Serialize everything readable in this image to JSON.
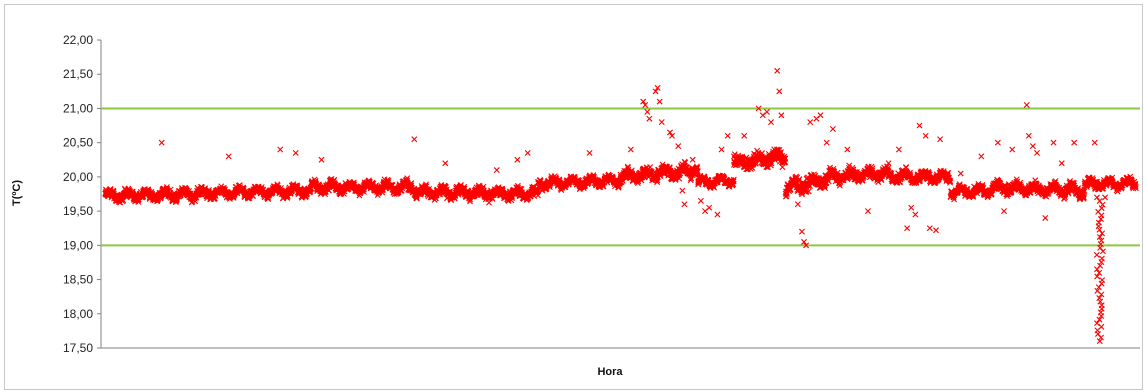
{
  "chart_data": {
    "type": "scatter",
    "title": "",
    "xlabel": "Hora",
    "ylabel": "T(ºC)",
    "ylim": [
      17.5,
      22.0
    ],
    "yticks": [
      "17,50",
      "18,00",
      "18,50",
      "19,00",
      "19,50",
      "20,00",
      "20,50",
      "21,00",
      "21,50",
      "22,00"
    ],
    "grid": false,
    "legend": "none",
    "x_tick_labels": false,
    "reference_lines": [
      {
        "y": 21.0,
        "color": "#8dc63f"
      },
      {
        "y": 19.0,
        "color": "#8dc63f"
      }
    ],
    "marker": "x",
    "marker_color": "#ff0000",
    "x_range": [
      0,
      1000
    ],
    "segments": [
      {
        "x": [
          0,
          200
        ],
        "base": [
          19.72,
          19.8
        ],
        "jitter": 0.07
      },
      {
        "x": [
          200,
          300
        ],
        "base": [
          19.85,
          19.85
        ],
        "jitter": 0.08
      },
      {
        "x": [
          300,
          420
        ],
        "base": [
          19.78,
          19.75
        ],
        "jitter": 0.08
      },
      {
        "x": [
          420,
          500
        ],
        "base": [
          19.9,
          19.95
        ],
        "jitter": 0.06
      },
      {
        "x": [
          500,
          575
        ],
        "base": [
          20.0,
          20.1
        ],
        "jitter": 0.1
      },
      {
        "x": [
          575,
          610
        ],
        "base": [
          19.92,
          19.95
        ],
        "jitter": 0.05
      },
      {
        "x": [
          610,
          660
        ],
        "base": [
          20.2,
          20.3
        ],
        "jitter": 0.12
      },
      {
        "x": [
          660,
          700
        ],
        "base": [
          19.85,
          19.95
        ],
        "jitter": 0.12
      },
      {
        "x": [
          700,
          760
        ],
        "base": [
          20.0,
          20.05
        ],
        "jitter": 0.09
      },
      {
        "x": [
          760,
          820
        ],
        "base": [
          20.0,
          20.0
        ],
        "jitter": 0.08
      },
      {
        "x": [
          820,
          860
        ],
        "base": [
          19.78,
          19.8
        ],
        "jitter": 0.07
      },
      {
        "x": [
          860,
          950
        ],
        "base": [
          19.85,
          19.8
        ],
        "jitter": 0.09
      },
      {
        "x": [
          950,
          1000
        ],
        "base": [
          19.9,
          19.9
        ],
        "jitter": 0.07
      }
    ],
    "outliers": [
      {
        "x": 55,
        "y": 20.5
      },
      {
        "x": 120,
        "y": 20.3
      },
      {
        "x": 170,
        "y": 20.4
      },
      {
        "x": 185,
        "y": 20.35
      },
      {
        "x": 210,
        "y": 20.25
      },
      {
        "x": 300,
        "y": 20.55
      },
      {
        "x": 330,
        "y": 20.2
      },
      {
        "x": 380,
        "y": 20.1
      },
      {
        "x": 400,
        "y": 20.25
      },
      {
        "x": 410,
        "y": 20.35
      },
      {
        "x": 470,
        "y": 20.35
      },
      {
        "x": 510,
        "y": 20.4
      },
      {
        "x": 522,
        "y": 21.1
      },
      {
        "x": 524,
        "y": 21.05
      },
      {
        "x": 526,
        "y": 20.95
      },
      {
        "x": 528,
        "y": 20.85
      },
      {
        "x": 534,
        "y": 21.25
      },
      {
        "x": 536,
        "y": 21.3
      },
      {
        "x": 538,
        "y": 21.1
      },
      {
        "x": 540,
        "y": 20.8
      },
      {
        "x": 548,
        "y": 20.65
      },
      {
        "x": 550,
        "y": 20.6
      },
      {
        "x": 556,
        "y": 20.45
      },
      {
        "x": 560,
        "y": 19.8
      },
      {
        "x": 562,
        "y": 19.6
      },
      {
        "x": 570,
        "y": 20.25
      },
      {
        "x": 578,
        "y": 19.65
      },
      {
        "x": 582,
        "y": 19.5
      },
      {
        "x": 586,
        "y": 19.55
      },
      {
        "x": 594,
        "y": 19.45
      },
      {
        "x": 598,
        "y": 20.4
      },
      {
        "x": 604,
        "y": 20.6
      },
      {
        "x": 610,
        "y": 20.3
      },
      {
        "x": 620,
        "y": 20.6
      },
      {
        "x": 634,
        "y": 21.0
      },
      {
        "x": 638,
        "y": 20.9
      },
      {
        "x": 642,
        "y": 20.95
      },
      {
        "x": 646,
        "y": 20.8
      },
      {
        "x": 652,
        "y": 21.55
      },
      {
        "x": 654,
        "y": 21.25
      },
      {
        "x": 656,
        "y": 20.9
      },
      {
        "x": 672,
        "y": 19.6
      },
      {
        "x": 676,
        "y": 19.2
      },
      {
        "x": 678,
        "y": 19.05
      },
      {
        "x": 680,
        "y": 19.0
      },
      {
        "x": 684,
        "y": 20.8
      },
      {
        "x": 690,
        "y": 20.85
      },
      {
        "x": 694,
        "y": 20.9
      },
      {
        "x": 700,
        "y": 20.5
      },
      {
        "x": 706,
        "y": 20.7
      },
      {
        "x": 720,
        "y": 20.4
      },
      {
        "x": 740,
        "y": 19.5
      },
      {
        "x": 760,
        "y": 20.2
      },
      {
        "x": 770,
        "y": 20.4
      },
      {
        "x": 778,
        "y": 19.25
      },
      {
        "x": 782,
        "y": 19.55
      },
      {
        "x": 786,
        "y": 19.45
      },
      {
        "x": 790,
        "y": 20.75
      },
      {
        "x": 796,
        "y": 20.6
      },
      {
        "x": 800,
        "y": 19.25
      },
      {
        "x": 806,
        "y": 19.22
      },
      {
        "x": 810,
        "y": 20.55
      },
      {
        "x": 830,
        "y": 20.05
      },
      {
        "x": 850,
        "y": 20.3
      },
      {
        "x": 866,
        "y": 20.5
      },
      {
        "x": 872,
        "y": 19.5
      },
      {
        "x": 880,
        "y": 20.4
      },
      {
        "x": 894,
        "y": 21.05
      },
      {
        "x": 896,
        "y": 20.6
      },
      {
        "x": 900,
        "y": 20.45
      },
      {
        "x": 904,
        "y": 20.35
      },
      {
        "x": 912,
        "y": 19.4
      },
      {
        "x": 920,
        "y": 20.5
      },
      {
        "x": 928,
        "y": 20.2
      },
      {
        "x": 940,
        "y": 20.5
      },
      {
        "x": 960,
        "y": 20.5
      },
      {
        "x": 970,
        "y": 19.7
      }
    ],
    "dip": {
      "x": [
        962,
        968
      ],
      "y_from": 19.7,
      "y_to": 17.6
    }
  }
}
